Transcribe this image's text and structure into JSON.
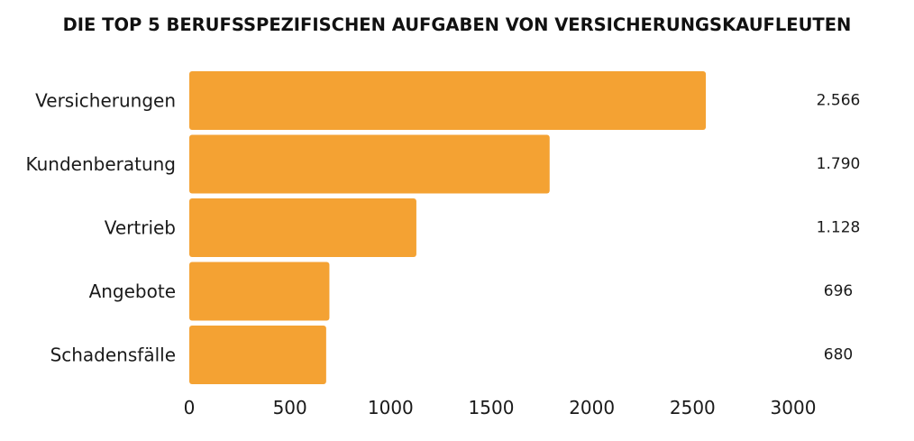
{
  "chart_data": {
    "type": "bar",
    "orientation": "horizontal",
    "title": "DIE TOP 5 BERUFSSPEZIFISCHEN AUFGABEN VON VERSICHERUNGSKAUFLEUTEN",
    "categories": [
      "Versicherungen",
      "Kundenberatung",
      "Vertrieb",
      "Angebote",
      "Schadensfälle"
    ],
    "values": [
      2566,
      1790,
      1128,
      696,
      680
    ],
    "value_labels": [
      "2.566",
      "1.790",
      "1.128",
      "696",
      "680"
    ],
    "xlim": [
      0,
      3000
    ],
    "xticks": [
      "0",
      "500",
      "1000",
      "1500",
      "2000",
      "2500",
      "3000"
    ],
    "xtick_values": [
      0,
      500,
      1000,
      1500,
      2000,
      2500,
      3000
    ],
    "bar_color": "#F4A233",
    "grid": false,
    "legend": "none"
  }
}
